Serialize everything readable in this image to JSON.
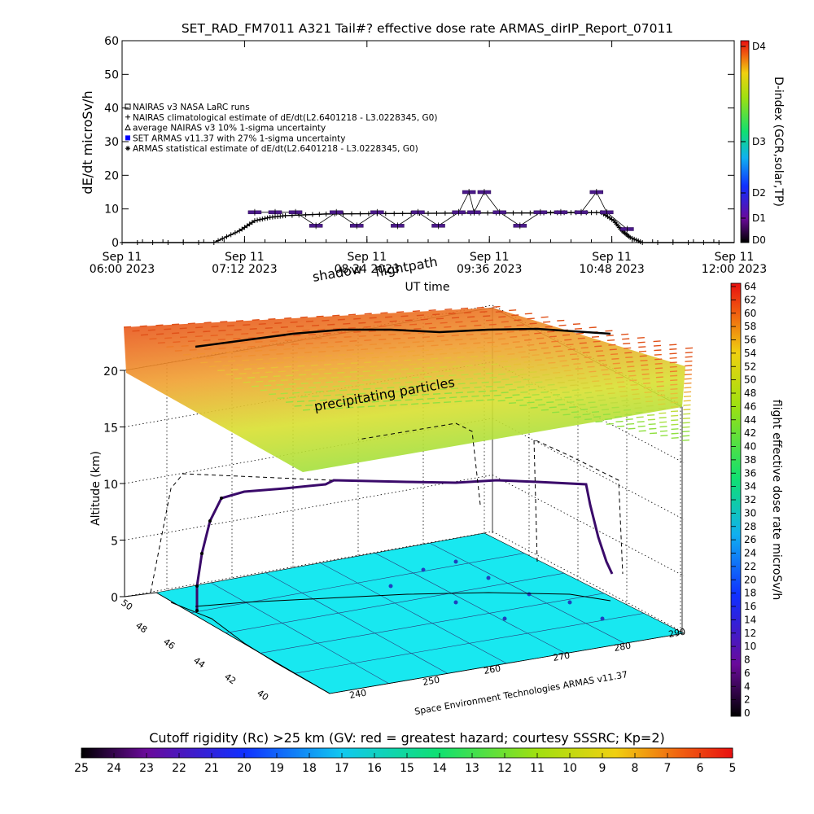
{
  "title": "SET_RAD_FM7011  A321 Tail#? effective dose rate ARMAS_dirIP_Report_07011",
  "top_panel": {
    "ylabel": "dE/dt microSv/h",
    "xlabel": "UT time",
    "yticks": [
      "0",
      "10",
      "20",
      "30",
      "40",
      "50",
      "60"
    ],
    "xticks": [
      {
        "line1": "Sep 11",
        "line2": "06:00 2023"
      },
      {
        "line1": "Sep 11",
        "line2": "07:12 2023"
      },
      {
        "line1": "Sep 11",
        "line2": "08:24 2023"
      },
      {
        "line1": "Sep 11",
        "line2": "09:36 2023"
      },
      {
        "line1": "Sep 11",
        "line2": "10:48 2023"
      },
      {
        "line1": "Sep 11",
        "line2": "12:00 2023"
      }
    ],
    "legend": [
      {
        "symbol": "square",
        "label": "NAIRAS v3 NASA LaRC runs"
      },
      {
        "symbol": "plus",
        "label": "NAIRAS climatological estimate of dE/dt(L2.6401218 - L3.0228345, G0)"
      },
      {
        "symbol": "triangle",
        "label": "average NAIRAS v3 10% 1-sigma uncertainty"
      },
      {
        "symbol": "blue-dot",
        "label": "SET ARMAS v11.37 with 27% 1-sigma uncertainty"
      },
      {
        "symbol": "asterisk",
        "label": "ARMAS statistical estimate of dE/dt(L2.6401218 - L3.0228345, G0)"
      }
    ],
    "dindex": {
      "label": "D-index (GCR,solar,TP)",
      "ticks": [
        "D0",
        "D1",
        "D2",
        "D3",
        "D4"
      ]
    }
  },
  "three_d": {
    "zlabel": "Altitude (km)",
    "zticks": [
      "0",
      "5",
      "10",
      "15",
      "20"
    ],
    "lat_ticks": [
      "50",
      "48",
      "46",
      "44",
      "42",
      "40"
    ],
    "lon_ticks": [
      "240",
      "250",
      "260",
      "270",
      "280",
      "290"
    ],
    "annot_shadow": "shadow",
    "annot_flightpath": "flightpath",
    "annot_precip": "precipitating particles",
    "credit": "Space Environment Technologies ARMAS v11.37"
  },
  "right_colorbar": {
    "label": "flight effective dose rate microSv/h",
    "ticks": [
      "0",
      "2",
      "4",
      "6",
      "8",
      "10",
      "12",
      "14",
      "16",
      "18",
      "20",
      "22",
      "24",
      "26",
      "28",
      "30",
      "32",
      "34",
      "36",
      "38",
      "40",
      "42",
      "44",
      "46",
      "48",
      "50",
      "52",
      "54",
      "56",
      "58",
      "60",
      "62",
      "64"
    ]
  },
  "bottom_colorbar": {
    "title": "Cutoff rigidity (Rc) >25 km (GV: red = greatest hazard; courtesy SSSRC; Kp=2)",
    "ticks": [
      "25",
      "24",
      "23",
      "22",
      "21",
      "20",
      "19",
      "18",
      "17",
      "16",
      "15",
      "14",
      "13",
      "12",
      "11",
      "10",
      "9",
      "8",
      "7",
      "6",
      "5"
    ]
  },
  "colors": {
    "map_fill": "#18e8f0",
    "flight_track": "#3a0a6a",
    "armas_dot": "#0000ff"
  },
  "chart_data": [
    {
      "type": "line",
      "title": "SET_RAD_FM7011  A321 Tail#? effective dose rate ARMAS_dirIP_Report_07011",
      "xlabel": "UT time",
      "ylabel": "dE/dt microSv/h",
      "x_unit": "hours UT",
      "xlim": [
        6.0,
        12.0
      ],
      "ylim": [
        0,
        60
      ],
      "series": [
        {
          "name": "NAIRAS climatological estimate of dE/dt(L2.6401218 - L3.0228345, G0)",
          "x": [
            6.0,
            6.9,
            7.15,
            7.3,
            7.45,
            7.6,
            8.0,
            8.5,
            9.0,
            9.5,
            10.0,
            10.4,
            10.7,
            10.82,
            10.9,
            10.98,
            11.1,
            12.0
          ],
          "values": [
            0,
            0,
            3.5,
            6.5,
            7.5,
            8,
            8.5,
            8.6,
            8.7,
            8.8,
            8.8,
            8.9,
            8.9,
            6.5,
            3.5,
            1.5,
            0,
            0
          ]
        },
        {
          "name": "SET ARMAS v11.37 with 27% 1-sigma uncertainty",
          "x": [
            7.3,
            7.5,
            7.7,
            7.9,
            8.1,
            8.3,
            8.5,
            8.7,
            8.9,
            9.1,
            9.3,
            9.4,
            9.45,
            9.55,
            9.7,
            9.9,
            10.1,
            10.3,
            10.5,
            10.65,
            10.75,
            10.95
          ],
          "values": [
            9,
            9,
            9,
            5,
            9,
            5,
            9,
            5,
            9,
            5,
            9,
            15,
            9,
            15,
            9,
            5,
            9,
            9,
            9,
            15,
            9,
            4
          ]
        }
      ]
    },
    {
      "type": "line",
      "title": "flightpath",
      "zlabel": "Altitude (km)",
      "x_unit": "longitude (deg)",
      "y_unit": "latitude (deg)",
      "xlim": [
        235,
        290
      ],
      "ylim": [
        40,
        50
      ],
      "zlim": [
        0,
        20
      ],
      "series": [
        {
          "name": "flightpath",
          "x": [
            237,
            238,
            240,
            243,
            250,
            258,
            266,
            273,
            280,
            283,
            285
          ],
          "y": [
            47.9,
            47.8,
            47.6,
            47.5,
            47.3,
            47.1,
            46.6,
            46.0,
            45.5,
            45.2,
            45.0
          ],
          "values": [
            0,
            3,
            6.5,
            8.5,
            9.5,
            10.5,
            10.3,
            10.6,
            10.6,
            4,
            0
          ]
        }
      ]
    }
  ]
}
